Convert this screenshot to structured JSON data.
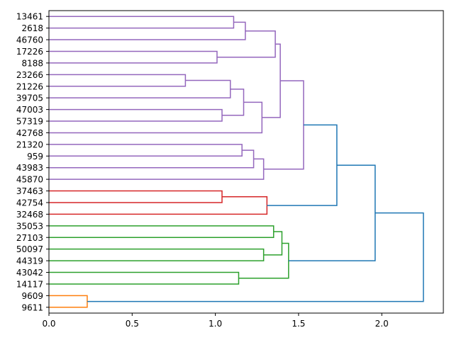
{
  "chart_data": {
    "type": "dendrogram",
    "orientation": "horizontal",
    "title": "",
    "xlabel": "",
    "ylabel": "",
    "xlim": [
      0,
      2.37
    ],
    "xticks": [
      0.0,
      0.5,
      1.0,
      1.5,
      2.0
    ],
    "xtick_labels": [
      "0.0",
      "0.5",
      "1.0",
      "1.5",
      "2.0"
    ],
    "leaves": [
      "13461",
      "2618",
      "46760",
      "17226",
      "8188",
      "23266",
      "21226",
      "39705",
      "47003",
      "57319",
      "42768",
      "21320",
      "959",
      "43983",
      "45870",
      "37463",
      "42754",
      "32468",
      "35053",
      "27103",
      "50097",
      "44319",
      "43042",
      "14117",
      "9609",
      "9611"
    ],
    "colors": {
      "purple": "#9467bd",
      "red": "#d62728",
      "green": "#2ca02c",
      "orange": "#ff7f0e",
      "blue": "#1f77b4",
      "axis": "#000000",
      "background": "#ffffff"
    },
    "merges": [
      {
        "a": "13461",
        "b": "2618",
        "height": 1.11,
        "color": "purple"
      },
      {
        "a": "m0",
        "b": "46760",
        "height": 1.18,
        "color": "purple"
      },
      {
        "a": "17226",
        "b": "8188",
        "height": 1.01,
        "color": "purple"
      },
      {
        "a": "m1",
        "b": "m2",
        "height": 1.36,
        "color": "purple"
      },
      {
        "a": "23266",
        "b": "21226",
        "height": 0.82,
        "color": "purple"
      },
      {
        "a": "m4",
        "b": "39705",
        "height": 1.09,
        "color": "purple"
      },
      {
        "a": "47003",
        "b": "57319",
        "height": 1.04,
        "color": "purple"
      },
      {
        "a": "m5",
        "b": "m6",
        "height": 1.17,
        "color": "purple"
      },
      {
        "a": "m7",
        "b": "42768",
        "height": 1.28,
        "color": "purple"
      },
      {
        "a": "m3",
        "b": "m8",
        "height": 1.39,
        "color": "purple"
      },
      {
        "a": "21320",
        "b": "959",
        "height": 1.16,
        "color": "purple"
      },
      {
        "a": "m10",
        "b": "43983",
        "height": 1.23,
        "color": "purple"
      },
      {
        "a": "m11",
        "b": "45870",
        "height": 1.29,
        "color": "purple"
      },
      {
        "a": "m9",
        "b": "m12",
        "height": 1.53,
        "color": "purple"
      },
      {
        "a": "37463",
        "b": "42754",
        "height": 1.04,
        "color": "red"
      },
      {
        "a": "m14",
        "b": "32468",
        "height": 1.31,
        "color": "red"
      },
      {
        "a": "m13",
        "b": "m15",
        "height": 1.73,
        "color": "blue"
      },
      {
        "a": "35053",
        "b": "27103",
        "height": 1.35,
        "color": "green"
      },
      {
        "a": "50097",
        "b": "44319",
        "height": 1.29,
        "color": "green"
      },
      {
        "a": "m17",
        "b": "m18",
        "height": 1.4,
        "color": "green"
      },
      {
        "a": "43042",
        "b": "14117",
        "height": 1.14,
        "color": "green"
      },
      {
        "a": "m19",
        "b": "m20",
        "height": 1.44,
        "color": "green"
      },
      {
        "a": "m16",
        "b": "m21",
        "height": 1.96,
        "color": "blue"
      },
      {
        "a": "9609",
        "b": "9611",
        "height": 0.23,
        "color": "orange"
      },
      {
        "a": "m22",
        "b": "m23",
        "height": 2.25,
        "color": "blue"
      }
    ]
  }
}
